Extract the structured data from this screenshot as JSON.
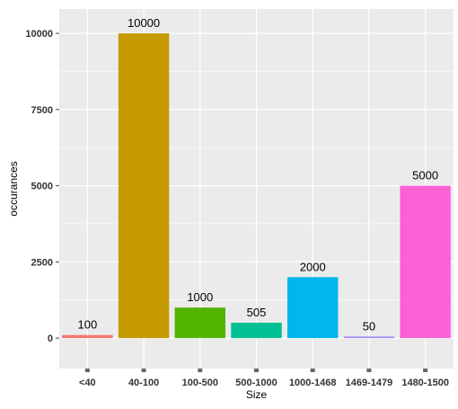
{
  "chart_data": {
    "type": "bar",
    "title": "",
    "xlabel": "Size",
    "ylabel": "occurances",
    "categories": [
      "<40",
      "40-100",
      "100-500",
      "500-1000",
      "1000-1468",
      "1469-1479",
      "1480-1500"
    ],
    "values": [
      100,
      10000,
      1000,
      505,
      2000,
      50,
      5000
    ],
    "data_labels": [
      "100",
      "10000",
      "1000",
      "505",
      "2000",
      "50",
      "5000"
    ],
    "bar_colors": [
      "#F8766D",
      "#C49A00",
      "#53B400",
      "#00C094",
      "#00B6EB",
      "#A58AFF",
      "#FB61D7"
    ],
    "ylim": [
      -1000,
      10800
    ],
    "yticks": [
      0,
      2500,
      5000,
      7500,
      10000
    ],
    "ytick_labels": [
      "0",
      "2500",
      "5000",
      "7500",
      "10000"
    ],
    "grid": true,
    "legend": "none",
    "panel_background": "#EBEBEB",
    "grid_color": "#FFFFFF"
  }
}
